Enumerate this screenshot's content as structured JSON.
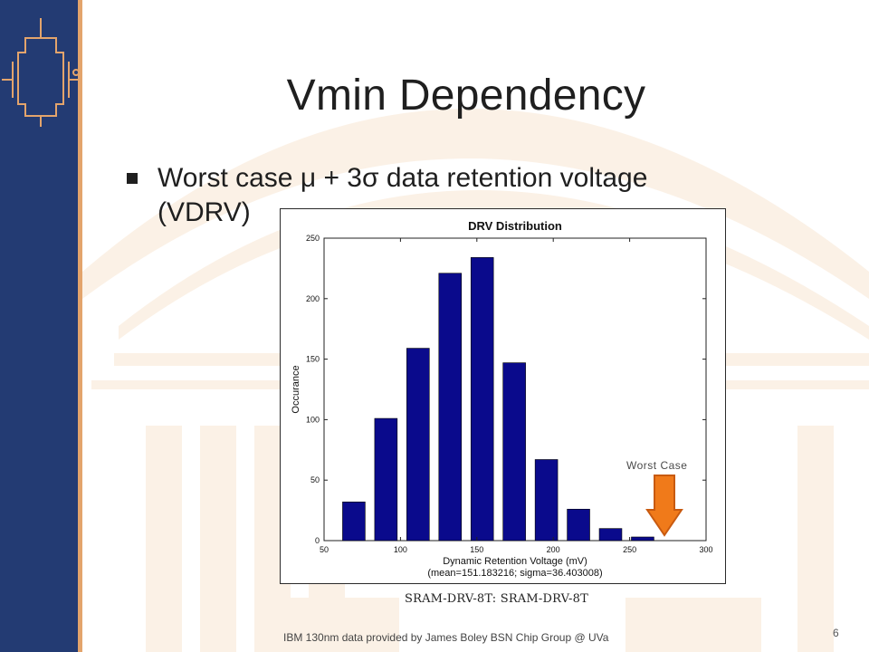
{
  "slide": {
    "title": "Vmin Dependency",
    "bullets": [
      "Worst case μ + 3σ data retention voltage (VDRV)"
    ],
    "annotation": "Worst Case",
    "caption": "SRAM-DRV-8T: SRAM-DRV-8T",
    "footer": "IBM 130nm  data provided by James Boley BSN Chip Group @ UVa",
    "page_number": "6"
  },
  "colors": {
    "sidebar": "#233b73",
    "accent": "#e3a46c",
    "bar": "#0a0a8c",
    "arrow": "#f07a1a",
    "background_decor": "#fbf1e6"
  },
  "icons": {
    "logo": "circuit-transistor-icon",
    "annotation_arrow": "down-arrow-icon"
  },
  "chart_data": {
    "type": "bar",
    "title": "DRV Distribution",
    "xlabel": "Dynamic Retention Voltage (mV)",
    "xlabel2": "(mean=151.183216; sigma=36.403008)",
    "ylabel": "Occurance",
    "xlim": [
      50,
      300
    ],
    "ylim": [
      0,
      250
    ],
    "xticks": [
      "50",
      "100",
      "150",
      "200",
      "250",
      "300"
    ],
    "yticks": [
      "0",
      "50",
      "100",
      "150",
      "200",
      "250"
    ],
    "bin_width": 20.5,
    "bins": [
      {
        "center": 69.5,
        "value": 32
      },
      {
        "center": 90.5,
        "value": 101
      },
      {
        "center": 111.5,
        "value": 159
      },
      {
        "center": 132.5,
        "value": 221
      },
      {
        "center": 153.5,
        "value": 234
      },
      {
        "center": 174.5,
        "value": 147
      },
      {
        "center": 195.5,
        "value": 67
      },
      {
        "center": 216.5,
        "value": 26
      },
      {
        "center": 237.5,
        "value": 10
      },
      {
        "center": 258.5,
        "value": 3
      }
    ],
    "grid": false,
    "legend": "none"
  }
}
